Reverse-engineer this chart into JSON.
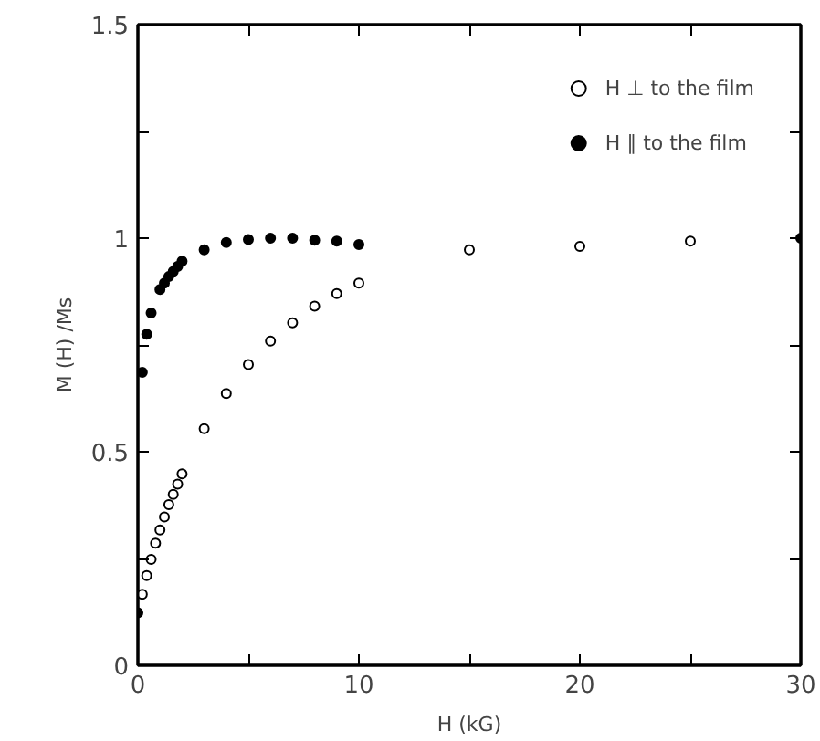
{
  "chart_data": {
    "type": "scatter",
    "xlabel": "H (kG)",
    "ylabel": "M (H) /Ms",
    "xlim": [
      0,
      30
    ],
    "ylim": [
      0,
      1.5
    ],
    "xticks": [
      0,
      {
        "value": 5,
        "label": null
      },
      10,
      {
        "value": 15,
        "label": null
      },
      20,
      {
        "value": 25,
        "label": null
      },
      30
    ],
    "yticks": [
      0,
      {
        "value": 0.25,
        "label": null
      },
      0.5,
      {
        "value": 0.75,
        "label": null
      },
      1,
      {
        "value": 1.25,
        "label": null
      },
      1.5
    ],
    "grid": false,
    "legend": "top right",
    "series": [
      {
        "name": "H ⊥ to the film",
        "color": "#000000",
        "marker": "circle_open",
        "x": [
          0.2,
          0.4,
          0.6,
          0.8,
          1.0,
          1.2,
          1.4,
          1.6,
          1.8,
          2.0,
          3,
          4,
          5,
          6,
          7,
          8,
          9,
          10,
          15,
          20,
          25
        ],
        "values": [
          0.166,
          0.21,
          0.248,
          0.286,
          0.317,
          0.347,
          0.376,
          0.4,
          0.424,
          0.448,
          0.554,
          0.636,
          0.704,
          0.759,
          0.802,
          0.841,
          0.87,
          0.895,
          0.973,
          0.981,
          0.993
        ]
      },
      {
        "name": "H ∥ to the film",
        "color": "#000000",
        "marker": "circle",
        "x": [
          0,
          0.2,
          0.4,
          0.6,
          1.0,
          1.2,
          1.4,
          1.6,
          1.8,
          2.0,
          3,
          4,
          5,
          6,
          7,
          8,
          9,
          10,
          30
        ],
        "values": [
          0.123,
          0.686,
          0.775,
          0.825,
          0.88,
          0.895,
          0.91,
          0.922,
          0.934,
          0.946,
          0.973,
          0.99,
          0.997,
          1.0,
          1.0,
          0.995,
          0.993,
          0.985,
          1.0
        ]
      }
    ]
  }
}
